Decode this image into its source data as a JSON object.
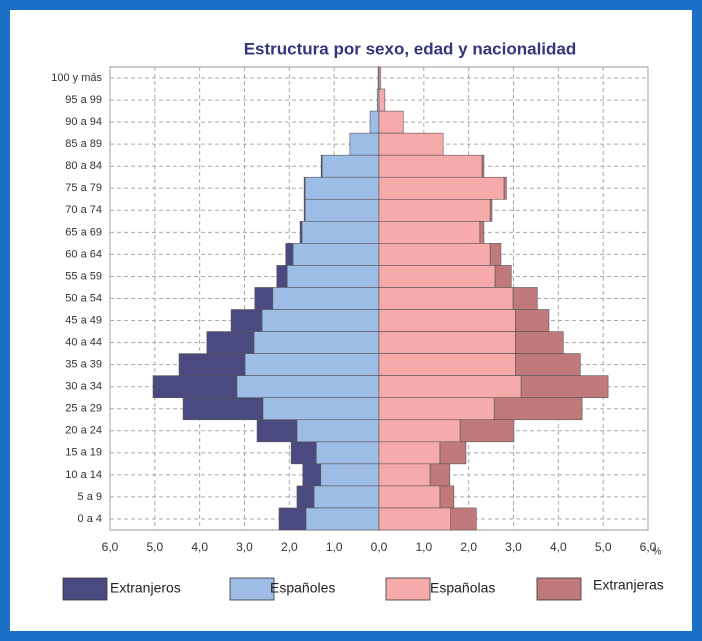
{
  "chart_data": {
    "type": "pyramid",
    "title": "Estructura por sexo, edad y nacionalidad",
    "x_label": "%",
    "categories": [
      "100 y más",
      "95 a 99",
      "90 a 94",
      "85 a 89",
      "80 a 84",
      "75 a 79",
      "70 a 74",
      "65 a 69",
      "60 a 64",
      "55 a 59",
      "50 a 54",
      "45 a 49",
      "40 a 44",
      "35 a 39",
      "30 a 34",
      "25 a 29",
      "20 a 24",
      "15 a 19",
      "10 a 14",
      "5 a 9",
      "0 a 4"
    ],
    "series": [
      {
        "name": "Extranjeros",
        "side": "left",
        "color": "#4b4a80",
        "values": [
          0,
          0,
          0,
          0,
          0.02,
          0.02,
          0.02,
          0.04,
          0.16,
          0.23,
          0.4,
          0.69,
          1.05,
          1.47,
          1.87,
          1.78,
          0.89,
          0.56,
          0.4,
          0.38,
          0.6
        ]
      },
      {
        "name": "Españoles",
        "side": "left",
        "color": "#9dbce6",
        "values": [
          0.02,
          0.04,
          0.2,
          0.65,
          1.27,
          1.65,
          1.65,
          1.72,
          1.92,
          2.05,
          2.37,
          2.61,
          2.79,
          2.99,
          3.17,
          2.59,
          1.83,
          1.4,
          1.3,
          1.45,
          1.63
        ]
      },
      {
        "name": "Españolas",
        "side": "right",
        "color": "#f7aaaa",
        "values": [
          0.04,
          0.13,
          0.54,
          1.43,
          2.3,
          2.79,
          2.48,
          2.25,
          2.48,
          2.59,
          2.99,
          3.04,
          3.04,
          3.04,
          3.17,
          2.57,
          1.81,
          1.36,
          1.14,
          1.36,
          1.6
        ]
      },
      {
        "name": "Extranjeras",
        "side": "right",
        "color": "#c07a7c",
        "values": [
          0,
          0,
          0,
          0,
          0.04,
          0.05,
          0.04,
          0.09,
          0.24,
          0.36,
          0.54,
          0.75,
          1.07,
          1.45,
          1.94,
          1.96,
          1.2,
          0.58,
          0.44,
          0.31,
          0.57
        ]
      }
    ],
    "xlim": [
      -6,
      6
    ],
    "xticks": [
      {
        "value": -6,
        "label": "6,0"
      },
      {
        "value": -5,
        "label": "5,0"
      },
      {
        "value": -4,
        "label": "4,0"
      },
      {
        "value": -3,
        "label": "3,0"
      },
      {
        "value": -2,
        "label": "2,0"
      },
      {
        "value": -1,
        "label": "1,0"
      },
      {
        "value": 0,
        "label": "0,0"
      },
      {
        "value": 1,
        "label": "1,0"
      },
      {
        "value": 2,
        "label": "2,0"
      },
      {
        "value": 3,
        "label": "3,0"
      },
      {
        "value": 4,
        "label": "4,0"
      },
      {
        "value": 5,
        "label": "5,0"
      },
      {
        "value": 6,
        "label": "6,0"
      }
    ],
    "grid": true
  }
}
